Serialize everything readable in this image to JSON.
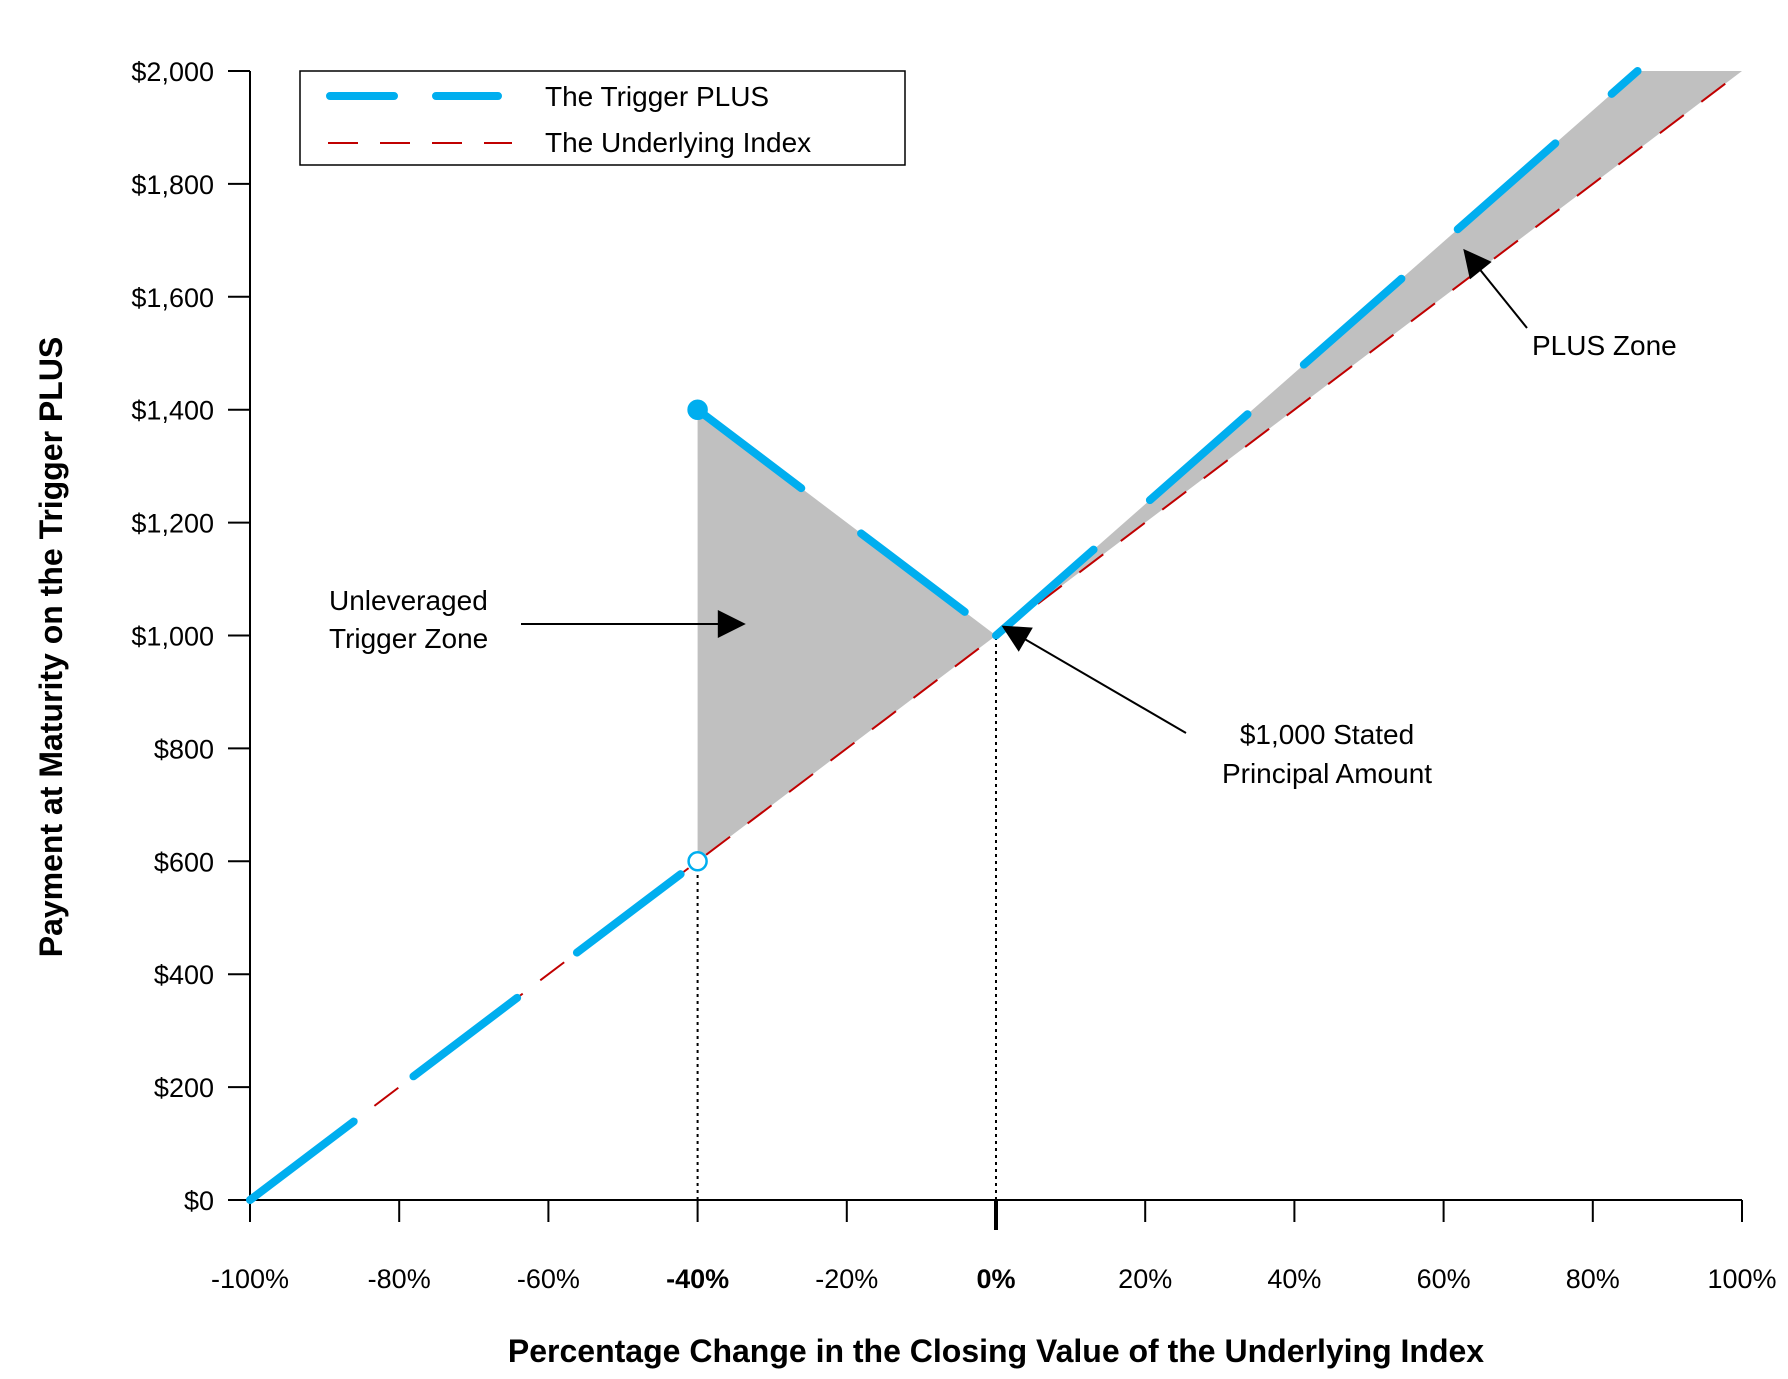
{
  "chart_data": {
    "type": "line",
    "xlabel": "Percentage Change in the Closing Value of the Underlying Index",
    "ylabel": "Payment at Maturity on the Trigger PLUS",
    "xlim": [
      -100,
      100
    ],
    "ylim": [
      0,
      2000
    ],
    "x_ticks": [
      -100,
      -80,
      -60,
      -40,
      -20,
      0,
      20,
      40,
      60,
      80,
      100
    ],
    "x_tick_labels": [
      "-100%",
      "-80%",
      "-60%",
      "-40%",
      "-20%",
      "0%",
      "20%",
      "40%",
      "60%",
      "80%",
      "100%"
    ],
    "bold_x_ticks": [
      "-40%",
      "0%"
    ],
    "y_ticks": [
      0,
      200,
      400,
      600,
      800,
      1000,
      1200,
      1400,
      1600,
      1800,
      2000
    ],
    "y_tick_labels": [
      "$0",
      "$200",
      "$400",
      "$600",
      "$800",
      "$1,000",
      "$1,200",
      "$1,400",
      "$1,600",
      "$1,800",
      "$2,000"
    ],
    "grid": false,
    "legend_position": "top-left",
    "series": [
      {
        "name": "The Trigger PLUS",
        "color": "#00aeef",
        "segments": [
          [
            [
              -100,
              0
            ],
            [
              -40,
              600
            ]
          ],
          [
            [
              -40,
              1400
            ],
            [
              0,
              1000
            ]
          ],
          [
            [
              0,
              1000
            ],
            [
              86,
              2000
            ]
          ]
        ]
      },
      {
        "name": "The Underlying Index",
        "color": "#c00000",
        "segments": [
          [
            [
              -100,
              0
            ],
            [
              100,
              2000
            ]
          ]
        ]
      }
    ],
    "markers": [
      {
        "x": -40,
        "y": 1400,
        "style": "filled"
      },
      {
        "x": -40,
        "y": 600,
        "style": "open"
      }
    ],
    "shaded_regions": [
      {
        "name": "Unleveraged Trigger Zone",
        "color": "#c0c0c0",
        "points": [
          [
            -40,
            1400
          ],
          [
            0,
            1000
          ],
          [
            -40,
            600
          ]
        ]
      },
      {
        "name": "PLUS Zone",
        "color": "#c0c0c0",
        "points": [
          [
            0,
            1000
          ],
          [
            86,
            2000
          ],
          [
            100,
            2000
          ]
        ]
      }
    ],
    "reference_lines": [
      {
        "x": -40,
        "y_to": 600
      },
      {
        "x": 0,
        "y_to": 1000
      }
    ],
    "annotations": [
      {
        "lines": [
          "Unleveraged",
          "Trigger Zone"
        ]
      },
      {
        "lines": [
          "$1,000 Stated",
          "Principal Amount"
        ]
      },
      {
        "lines": [
          "PLUS Zone"
        ]
      }
    ]
  }
}
